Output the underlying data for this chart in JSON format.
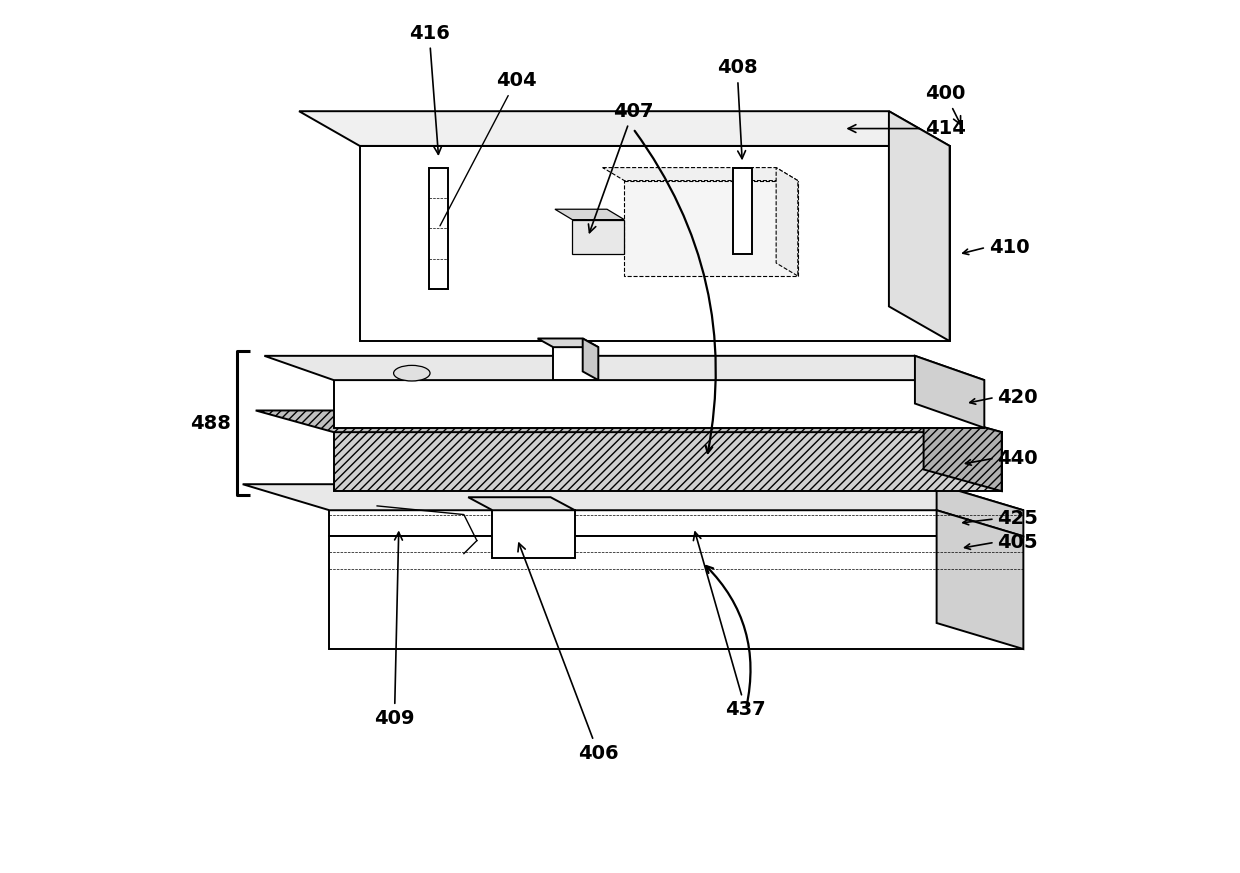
{
  "background_color": "#ffffff",
  "line_color": "#000000",
  "label_fontsize": 14,
  "label_fontweight": "bold"
}
